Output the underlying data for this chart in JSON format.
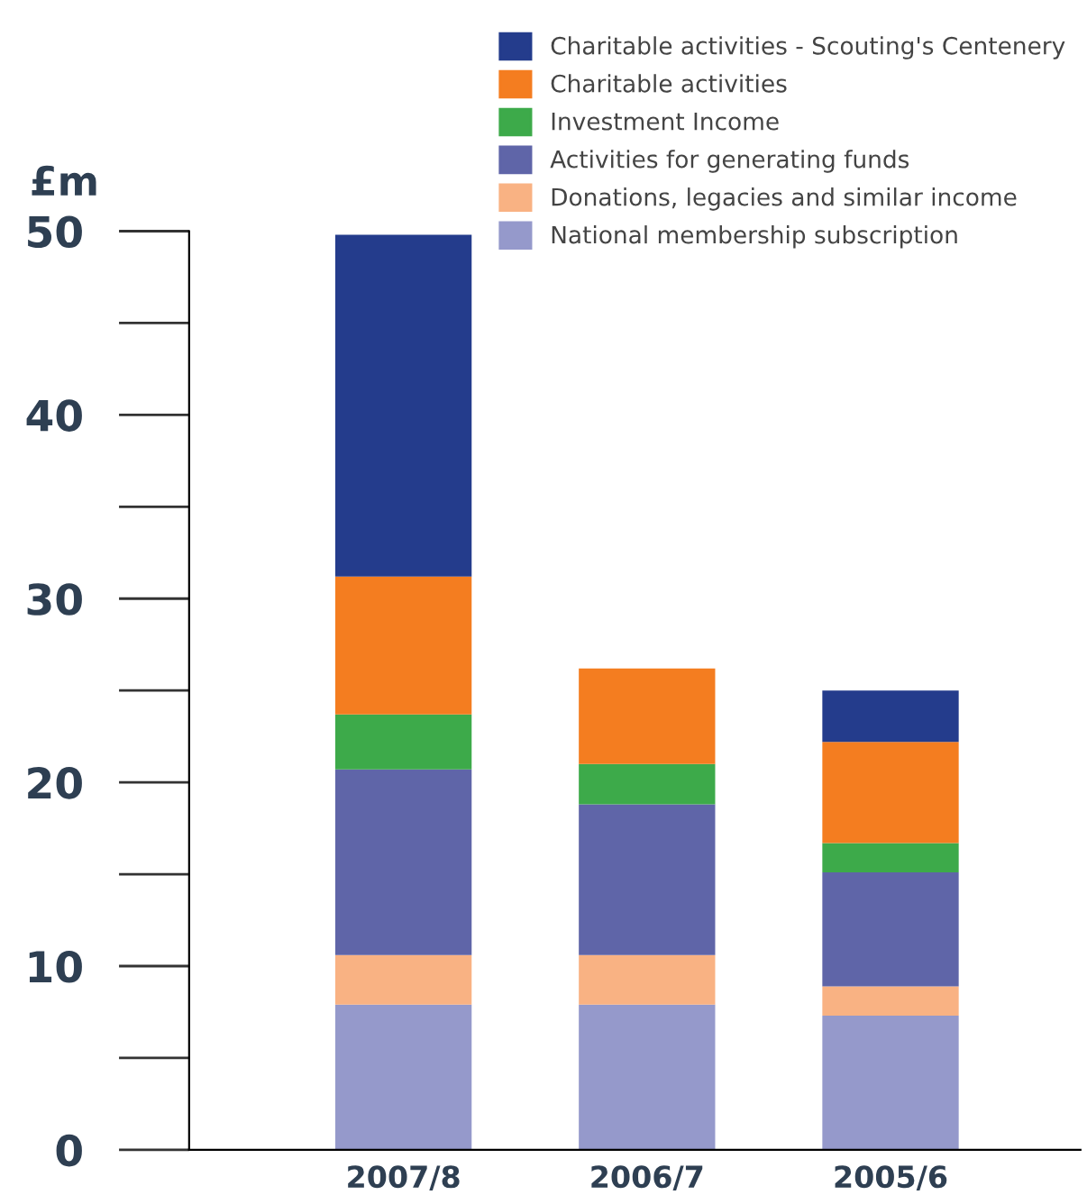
{
  "chart_data": {
    "type": "bar",
    "stacked": true,
    "ylabel": "£m",
    "categories": [
      "2007/8",
      "2006/7",
      "2005/6"
    ],
    "series": [
      {
        "name": "National membership subscription",
        "color": "#9599cb",
        "values": [
          7.9,
          7.9,
          7.3
        ]
      },
      {
        "name": "Donations, legacies and similar income",
        "color": "#f9b283",
        "values": [
          2.7,
          2.7,
          1.6
        ]
      },
      {
        "name": "Activities for generating funds",
        "color": "#5f65a8",
        "values": [
          10.1,
          8.2,
          6.2
        ]
      },
      {
        "name": "Investment Income",
        "color": "#3daa4a",
        "values": [
          3.0,
          2.2,
          1.6
        ]
      },
      {
        "name": "Charitable activities",
        "color": "#f47d20",
        "values": [
          7.5,
          5.2,
          5.5
        ]
      },
      {
        "name": "Charitable activities - Scouting's Centenery",
        "color": "#243c8c",
        "values": [
          18.6,
          null,
          2.8
        ]
      }
    ],
    "ylim": [
      0,
      50
    ],
    "yticks": [
      0,
      10,
      20,
      30,
      40,
      50
    ],
    "legend": "top right"
  }
}
